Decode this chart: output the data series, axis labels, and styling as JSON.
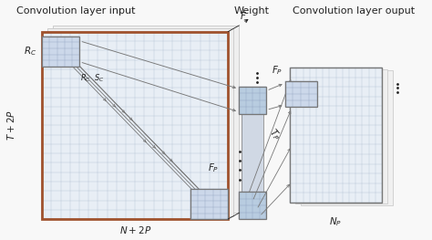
{
  "title_left": "Convolution layer input",
  "title_mid": "Weight",
  "title_right": "Convolution layer ouput",
  "bg_color": "#f8f8f8",
  "grid_color": "#aabbd0",
  "grid_color_dark": "#8899bb",
  "box_border_brown": "#a0522d",
  "box_border_gray": "#777777",
  "label_color": "#222222",
  "arrow_color": "#777777",
  "shadow_color": "#cccccc",
  "font_size": 7.5
}
